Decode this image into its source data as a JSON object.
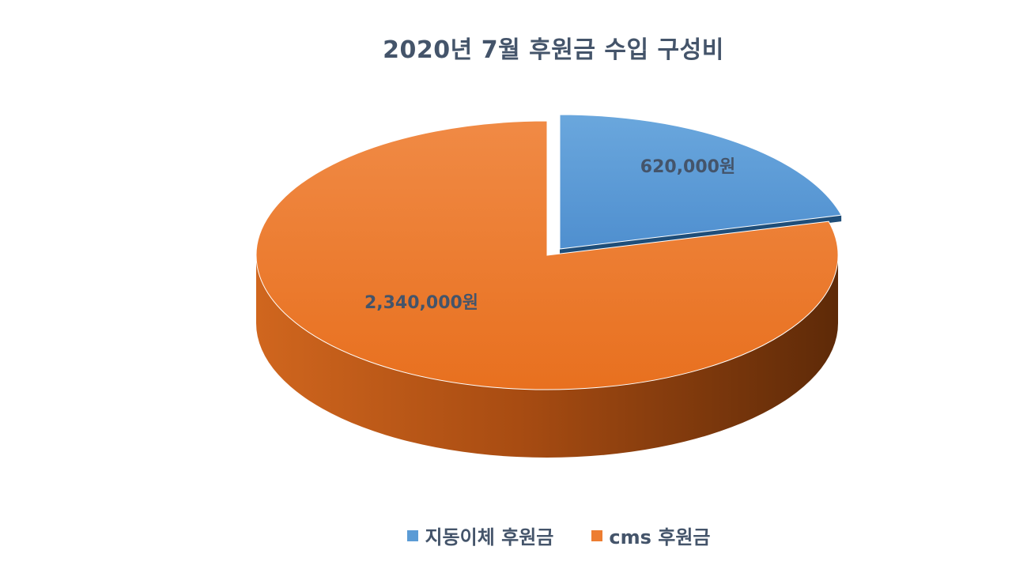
{
  "chart_data": {
    "type": "pie",
    "title": "2020년 7월 후원금 수입 구성비",
    "categories": [
      "지동이체 후원금",
      "cms 후원금"
    ],
    "values": [
      620000,
      2340000
    ],
    "data_labels": [
      "620,000원",
      "2,340,000원"
    ],
    "colors": [
      "#5b9bd5",
      "#ed7d31"
    ],
    "legend_position": "bottom",
    "style": "3d-exploded"
  }
}
